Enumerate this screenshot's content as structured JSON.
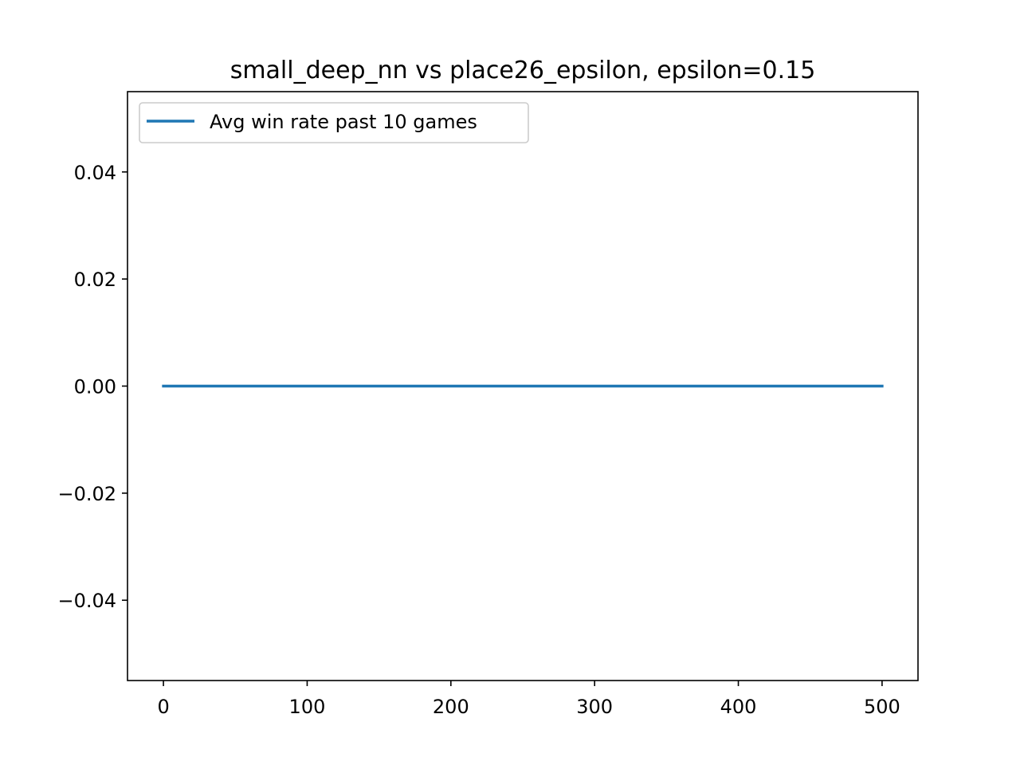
{
  "chart_data": {
    "type": "line",
    "title": "small_deep_nn vs place26_epsilon, epsilon=0.15",
    "xlabel": "",
    "ylabel": "",
    "xlim": [
      -25,
      525
    ],
    "ylim": [
      -0.055,
      0.055
    ],
    "x_ticks": [
      0,
      100,
      200,
      300,
      400,
      500
    ],
    "x_tick_labels": [
      "0",
      "100",
      "200",
      "300",
      "400",
      "500"
    ],
    "y_ticks": [
      -0.04,
      -0.02,
      0.0,
      0.02,
      0.04
    ],
    "y_tick_labels": [
      "−0.04",
      "−0.02",
      "0.00",
      "0.02",
      "0.04"
    ],
    "grid": false,
    "legend_position": "upper-left",
    "series": [
      {
        "name": "Avg win rate past 10 games",
        "color": "#1f77b4",
        "x": [
          0,
          500
        ],
        "y": [
          0.0,
          0.0
        ]
      }
    ]
  }
}
